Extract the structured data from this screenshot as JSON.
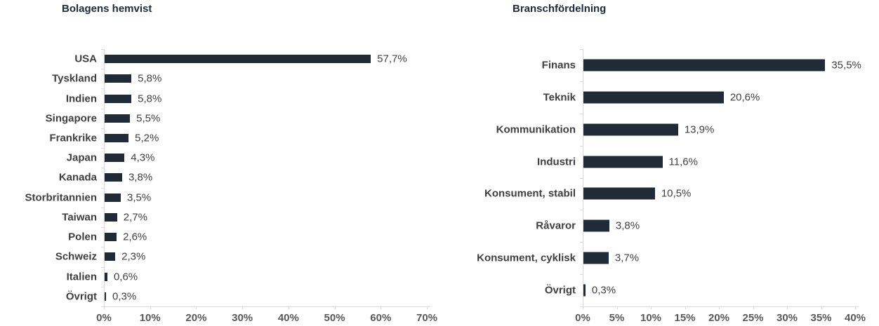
{
  "page": {
    "background": "#FFFFFF"
  },
  "charts_meta": {
    "bar_color": "#212B38",
    "axis_color": "#D9D9D9",
    "label_color": "#3F3F3F",
    "value_color": "#404040",
    "tick_color": "#595959",
    "title_color": "#1F2A3A"
  },
  "chart_data": [
    {
      "type": "bar",
      "orientation": "horizontal",
      "title": "Bolagens hemvist",
      "categories": [
        "USA",
        "Tyskland",
        "Indien",
        "Singapore",
        "Frankrike",
        "Japan",
        "Kanada",
        "Storbritannien",
        "Taiwan",
        "Polen",
        "Schweiz",
        "Italien",
        "Övrigt"
      ],
      "values": [
        57.7,
        5.8,
        5.8,
        5.5,
        5.2,
        4.3,
        3.8,
        3.5,
        2.7,
        2.6,
        2.3,
        0.6,
        0.3
      ],
      "value_labels": [
        "57,7%",
        "5,8%",
        "5,8%",
        "5,5%",
        "5,2%",
        "4,3%",
        "3,8%",
        "3,5%",
        "2,7%",
        "2,6%",
        "2,3%",
        "0,6%",
        "0,3%"
      ],
      "xlabel": "",
      "ylabel": "",
      "xlim": [
        0,
        70
      ],
      "xticks": [
        0,
        10,
        20,
        30,
        40,
        50,
        60,
        70
      ],
      "xtick_labels": [
        "0%",
        "10%",
        "20%",
        "30%",
        "40%",
        "50%",
        "60%",
        "70%"
      ],
      "grid": false,
      "legend": null
    },
    {
      "type": "bar",
      "orientation": "horizontal",
      "title": "Branschfördelning",
      "categories": [
        "Finans",
        "Teknik",
        "Kommunikation",
        "Industri",
        "Konsument, stabil",
        "Råvaror",
        "Konsument, cyklisk",
        "Övrigt"
      ],
      "values": [
        35.5,
        20.6,
        13.9,
        11.6,
        10.5,
        3.8,
        3.7,
        0.3
      ],
      "value_labels": [
        "35,5%",
        "20,6%",
        "13,9%",
        "11,6%",
        "10,5%",
        "3,8%",
        "3,7%",
        "0,3%"
      ],
      "xlabel": "",
      "ylabel": "",
      "xlim": [
        0,
        40
      ],
      "xticks": [
        0,
        5,
        10,
        15,
        20,
        25,
        30,
        35,
        40
      ],
      "xtick_labels": [
        "0%",
        "5%",
        "10%",
        "15%",
        "20%",
        "25%",
        "30%",
        "35%",
        "40%"
      ],
      "grid": false,
      "legend": null
    }
  ]
}
